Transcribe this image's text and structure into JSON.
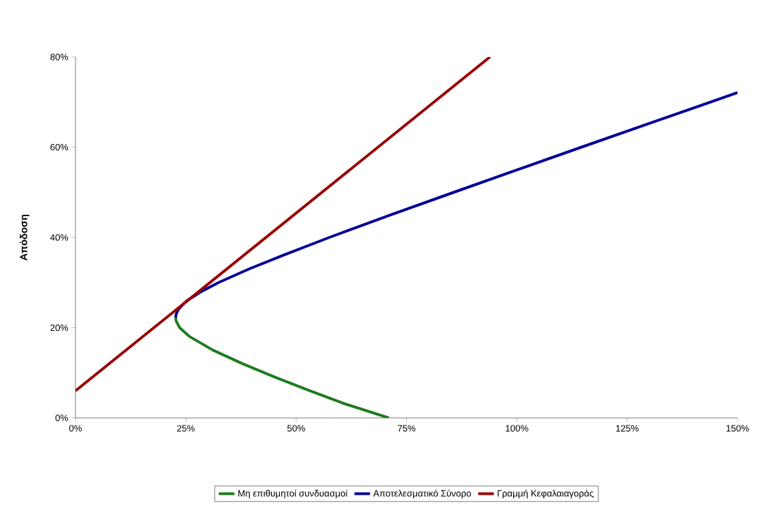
{
  "chart_data": {
    "type": "line",
    "ylabel": "Απόδοση",
    "xlim": [
      0,
      150
    ],
    "ylim": [
      0,
      80
    ],
    "xticks": [
      {
        "value": 0,
        "label": "0%"
      },
      {
        "value": 25,
        "label": "25%"
      },
      {
        "value": 50,
        "label": "50%"
      },
      {
        "value": 75,
        "label": "75%"
      },
      {
        "value": 100,
        "label": "100%"
      },
      {
        "value": 125,
        "label": "125%"
      },
      {
        "value": 150,
        "label": "150%"
      }
    ],
    "yticks": [
      {
        "value": 0,
        "label": "0%"
      },
      {
        "value": 20,
        "label": "20%"
      },
      {
        "value": 40,
        "label": "40%"
      },
      {
        "value": 60,
        "label": "60%"
      },
      {
        "value": 80,
        "label": "80%"
      }
    ],
    "grid": false,
    "legend": "bottom",
    "marker": "none",
    "line_style": "solid",
    "series": [
      {
        "name": "Μη επιθυμητοί συνδυασμοί",
        "color": "#1e7b1e",
        "x": [
          22.7,
          22.8,
          23.6,
          25.9,
          31.2,
          37.9,
          45.3,
          53.2,
          61.4,
          71.0
        ],
        "values": [
          22.2,
          21.5,
          20,
          18,
          15,
          12,
          9,
          6,
          3,
          0
        ]
      },
      {
        "name": "Αποτελεσματικό Σύνορο",
        "color": "#000099",
        "x": [
          22.7,
          22.8,
          23.3,
          24.2,
          25.3,
          28.5,
          32.4,
          39.3,
          46.9,
          57.5,
          71.4,
          85.7,
          100.1,
          114.6,
          129.2,
          150
        ],
        "values": [
          22.2,
          23,
          24,
          25,
          26,
          28,
          30,
          33,
          36,
          40,
          45,
          50,
          55,
          60,
          65,
          72.1
        ]
      },
      {
        "name": "Γραμμή Κεφαλαιαγοράς",
        "color": "#990000",
        "x": [
          0,
          93.9
        ],
        "values": [
          6,
          80
        ]
      }
    ]
  }
}
